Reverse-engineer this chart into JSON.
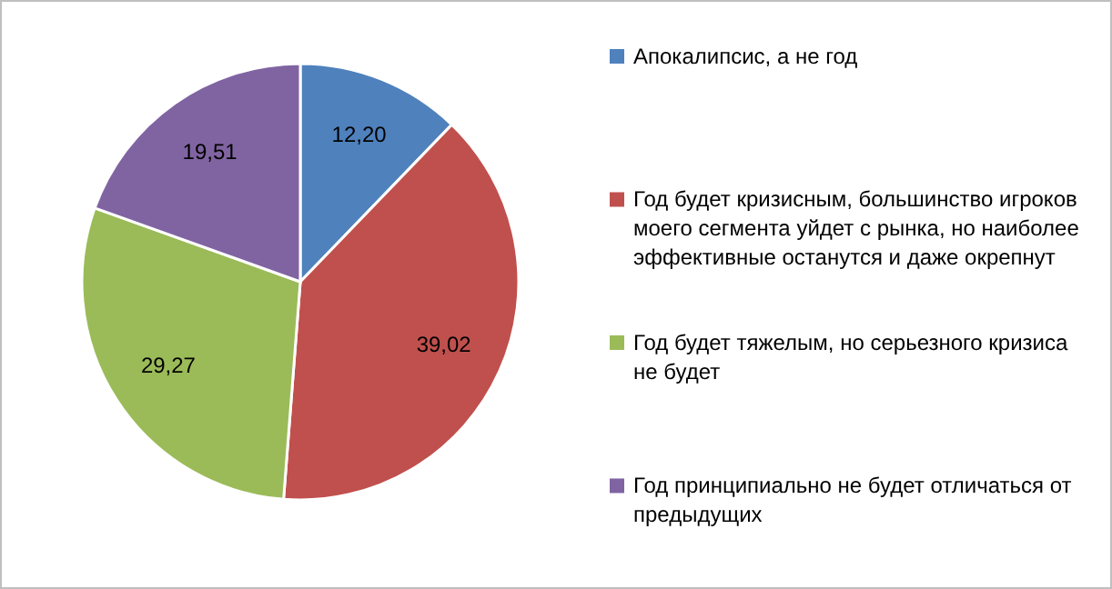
{
  "chart_data": {
    "type": "pie",
    "categories": [
      "Апокалипсис, а не год",
      "Год будет кризисным, большинство игроков моего сегмента уйдет с рынка, но наиболее эффективные останутся и даже окрепнут",
      "Год будет тяжелым, но серьезного кризиса не будет",
      "Год принципиально не будет отличаться от предыдущих"
    ],
    "values": [
      12.2,
      39.02,
      29.27,
      19.51
    ],
    "value_labels": [
      "12,20",
      "39,02",
      "29,27",
      "19,51"
    ],
    "colors": [
      "#4f81bd",
      "#c0504d",
      "#9bbb59",
      "#8064a2"
    ],
    "legend": "right"
  }
}
